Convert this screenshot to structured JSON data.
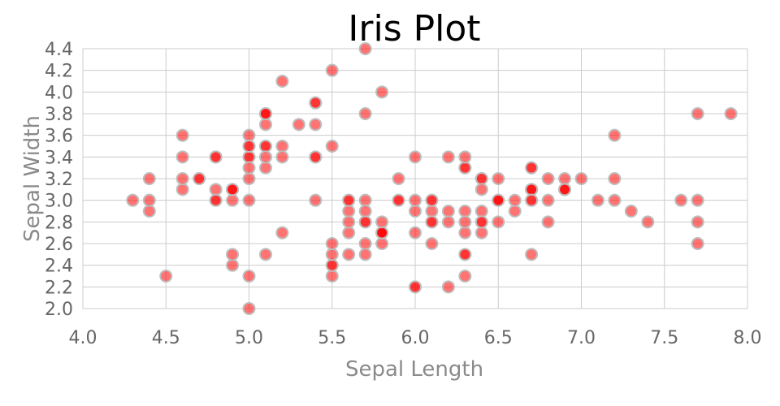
{
  "chart_data": {
    "type": "scatter",
    "title": "Iris Plot",
    "xlabel": "Sepal Length",
    "ylabel": "Sepal Width",
    "xlim": [
      4.0,
      8.0
    ],
    "ylim": [
      2.0,
      4.4
    ],
    "xticks": [
      "4.0",
      "4.5",
      "5.0",
      "5.5",
      "6.0",
      "6.5",
      "7.0",
      "7.5",
      "8.0"
    ],
    "yticks": [
      "2.0",
      "2.2",
      "2.4",
      "2.6",
      "2.8",
      "3.0",
      "3.2",
      "3.4",
      "3.6",
      "3.8",
      "4.0",
      "4.2",
      "4.4"
    ],
    "grid": true,
    "marker_color": "#ff0000",
    "marker_alpha": 0.55,
    "points": [
      [
        5.1,
        3.5
      ],
      [
        4.9,
        3.0
      ],
      [
        4.7,
        3.2
      ],
      [
        4.6,
        3.1
      ],
      [
        5.0,
        3.6
      ],
      [
        5.4,
        3.9
      ],
      [
        4.6,
        3.4
      ],
      [
        5.0,
        3.4
      ],
      [
        4.4,
        2.9
      ],
      [
        4.9,
        3.1
      ],
      [
        5.4,
        3.7
      ],
      [
        4.8,
        3.4
      ],
      [
        4.8,
        3.0
      ],
      [
        4.3,
        3.0
      ],
      [
        5.8,
        4.0
      ],
      [
        5.7,
        4.4
      ],
      [
        5.4,
        3.9
      ],
      [
        5.1,
        3.5
      ],
      [
        5.7,
        3.8
      ],
      [
        5.1,
        3.8
      ],
      [
        5.4,
        3.4
      ],
      [
        5.1,
        3.7
      ],
      [
        4.6,
        3.6
      ],
      [
        5.1,
        3.3
      ],
      [
        4.8,
        3.4
      ],
      [
        5.0,
        3.0
      ],
      [
        5.0,
        3.4
      ],
      [
        5.2,
        3.5
      ],
      [
        5.2,
        3.4
      ],
      [
        4.7,
        3.2
      ],
      [
        4.8,
        3.1
      ],
      [
        5.4,
        3.4
      ],
      [
        5.2,
        4.1
      ],
      [
        5.5,
        4.2
      ],
      [
        4.9,
        3.1
      ],
      [
        5.0,
        3.2
      ],
      [
        5.5,
        3.5
      ],
      [
        4.9,
        3.1
      ],
      [
        4.4,
        3.0
      ],
      [
        5.1,
        3.4
      ],
      [
        5.0,
        3.5
      ],
      [
        4.5,
        2.3
      ],
      [
        4.4,
        3.2
      ],
      [
        5.0,
        3.5
      ],
      [
        5.1,
        3.8
      ],
      [
        4.8,
        3.0
      ],
      [
        5.1,
        3.8
      ],
      [
        4.6,
        3.2
      ],
      [
        5.3,
        3.7
      ],
      [
        5.0,
        3.3
      ],
      [
        7.0,
        3.2
      ],
      [
        6.4,
        3.2
      ],
      [
        6.9,
        3.1
      ],
      [
        5.5,
        2.3
      ],
      [
        6.5,
        2.8
      ],
      [
        5.7,
        2.8
      ],
      [
        6.3,
        3.3
      ],
      [
        4.9,
        2.4
      ],
      [
        6.6,
        2.9
      ],
      [
        5.2,
        2.7
      ],
      [
        5.0,
        2.0
      ],
      [
        5.9,
        3.0
      ],
      [
        6.0,
        2.2
      ],
      [
        6.1,
        2.9
      ],
      [
        5.6,
        2.9
      ],
      [
        6.7,
        3.1
      ],
      [
        5.6,
        3.0
      ],
      [
        5.8,
        2.7
      ],
      [
        6.2,
        2.2
      ],
      [
        5.6,
        2.5
      ],
      [
        5.9,
        3.2
      ],
      [
        6.1,
        2.8
      ],
      [
        6.3,
        2.5
      ],
      [
        6.1,
        2.8
      ],
      [
        6.4,
        2.9
      ],
      [
        6.6,
        3.0
      ],
      [
        6.8,
        2.8
      ],
      [
        6.7,
        3.0
      ],
      [
        6.0,
        2.9
      ],
      [
        5.7,
        2.6
      ],
      [
        5.5,
        2.4
      ],
      [
        5.5,
        2.4
      ],
      [
        5.8,
        2.7
      ],
      [
        6.0,
        2.7
      ],
      [
        5.4,
        3.0
      ],
      [
        6.0,
        3.4
      ],
      [
        6.7,
        3.1
      ],
      [
        6.3,
        2.3
      ],
      [
        5.6,
        3.0
      ],
      [
        5.5,
        2.5
      ],
      [
        5.5,
        2.6
      ],
      [
        6.1,
        3.0
      ],
      [
        5.8,
        2.6
      ],
      [
        5.0,
        2.3
      ],
      [
        5.6,
        2.7
      ],
      [
        5.7,
        3.0
      ],
      [
        5.7,
        2.9
      ],
      [
        6.2,
        2.9
      ],
      [
        5.1,
        2.5
      ],
      [
        5.7,
        2.8
      ],
      [
        6.3,
        3.3
      ],
      [
        5.8,
        2.7
      ],
      [
        7.1,
        3.0
      ],
      [
        6.3,
        2.9
      ],
      [
        6.5,
        3.0
      ],
      [
        7.6,
        3.0
      ],
      [
        4.9,
        2.5
      ],
      [
        7.3,
        2.9
      ],
      [
        6.7,
        2.5
      ],
      [
        7.2,
        3.6
      ],
      [
        6.5,
        3.2
      ],
      [
        6.4,
        2.7
      ],
      [
        6.8,
        3.0
      ],
      [
        5.7,
        2.5
      ],
      [
        5.8,
        2.8
      ],
      [
        6.4,
        3.2
      ],
      [
        6.5,
        3.0
      ],
      [
        7.7,
        3.8
      ],
      [
        7.7,
        2.6
      ],
      [
        6.0,
        2.2
      ],
      [
        6.9,
        3.2
      ],
      [
        5.6,
        2.8
      ],
      [
        7.7,
        2.8
      ],
      [
        6.3,
        2.7
      ],
      [
        6.7,
        3.3
      ],
      [
        7.2,
        3.2
      ],
      [
        6.2,
        2.8
      ],
      [
        6.1,
        3.0
      ],
      [
        6.4,
        2.8
      ],
      [
        7.2,
        3.0
      ],
      [
        7.4,
        2.8
      ],
      [
        7.9,
        3.8
      ],
      [
        6.4,
        2.8
      ],
      [
        6.3,
        2.8
      ],
      [
        6.1,
        2.6
      ],
      [
        7.7,
        3.0
      ],
      [
        6.3,
        3.4
      ],
      [
        6.4,
        3.1
      ],
      [
        6.0,
        3.0
      ],
      [
        6.9,
        3.1
      ],
      [
        6.7,
        3.1
      ],
      [
        6.9,
        3.1
      ],
      [
        5.8,
        2.7
      ],
      [
        6.8,
        3.2
      ],
      [
        6.7,
        3.3
      ],
      [
        6.7,
        3.0
      ],
      [
        6.3,
        2.5
      ],
      [
        6.5,
        3.0
      ],
      [
        6.2,
        3.4
      ],
      [
        5.9,
        3.0
      ]
    ]
  }
}
